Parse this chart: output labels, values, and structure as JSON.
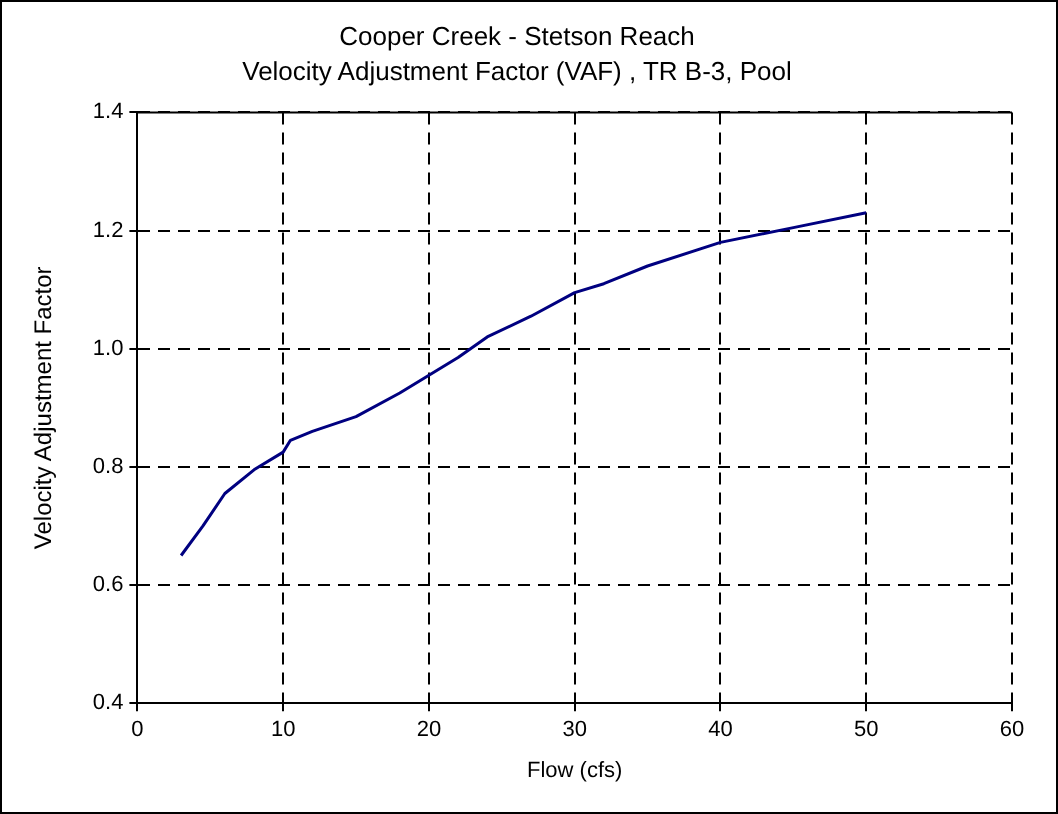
{
  "chart_data": {
    "type": "line",
    "title": "Cooper Creek - Stetson Reach",
    "subtitle": "Velocity Adjustment Factor (VAF) , TR B-3, Pool",
    "xlabel": "Flow (cfs)",
    "ylabel": "Velocity Adjustment Factor",
    "x": [
      3,
      4.5,
      6,
      8,
      10,
      10.5,
      12,
      15,
      18,
      20,
      22,
      24,
      27,
      30,
      32,
      35,
      40,
      45,
      50
    ],
    "series": [
      {
        "color": "#000080",
        "values": [
          0.65,
          0.7,
          0.755,
          0.795,
          0.825,
          0.845,
          0.86,
          0.885,
          0.925,
          0.955,
          0.985,
          1.02,
          1.055,
          1.095,
          1.11,
          1.14,
          1.18,
          1.205,
          1.23
        ]
      }
    ],
    "xlim": [
      0,
      60
    ],
    "xticks": [
      0,
      10,
      20,
      30,
      40,
      50,
      60
    ],
    "ylim": [
      0.4,
      1.4
    ],
    "yticks": [
      0.4,
      0.6,
      0.8,
      {
        "value": 1,
        "label": "1.0"
      },
      1.2,
      1.4
    ],
    "grid": true,
    "legend": false,
    "marker": "none",
    "line_style": "solid"
  }
}
